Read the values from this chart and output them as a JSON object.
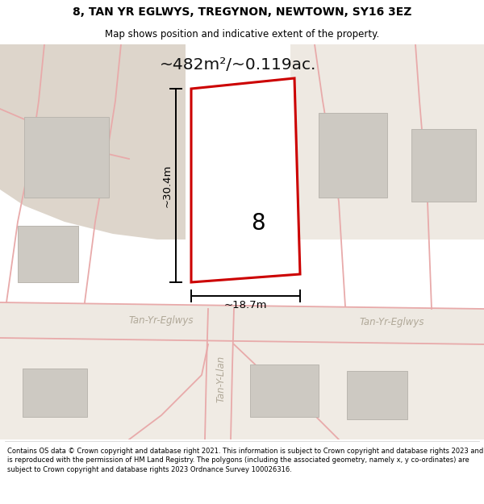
{
  "title_line1": "8, TAN YR EGLWYS, TREGYNON, NEWTOWN, SY16 3EZ",
  "title_line2": "Map shows position and indicative extent of the property.",
  "area_label": "~482m²/~0.119ac.",
  "number_label": "8",
  "dim_height": "~30.4m",
  "dim_width": "~18.7m",
  "road_label_left": "Tan-Yr-Eglwys",
  "road_label_right": "Tan-Yr-Eglwys",
  "road_label_vert": "Tan-Y-Llan",
  "footer_text": "Contains OS data © Crown copyright and database right 2021. This information is subject to Crown copyright and database rights 2023 and is reproduced with the permission of HM Land Registry. The polygons (including the associated geometry, namely x, y co-ordinates) are subject to Crown copyright and database rights 2023 Ordnance Survey 100026316.",
  "map_bg": "#f0ebe4",
  "building_fill": "#cdc9c2",
  "building_edge": "#bab6af",
  "highlight_fill": "#ffffff",
  "boundary_color": "#cc0000",
  "pink_line": "#e8aaaa",
  "beige_land": "#ddd5cb",
  "road_fill": "#eee9e2",
  "dim_color": "#000000",
  "road_text_color": "#b0a898",
  "area_text_color": "#111111"
}
